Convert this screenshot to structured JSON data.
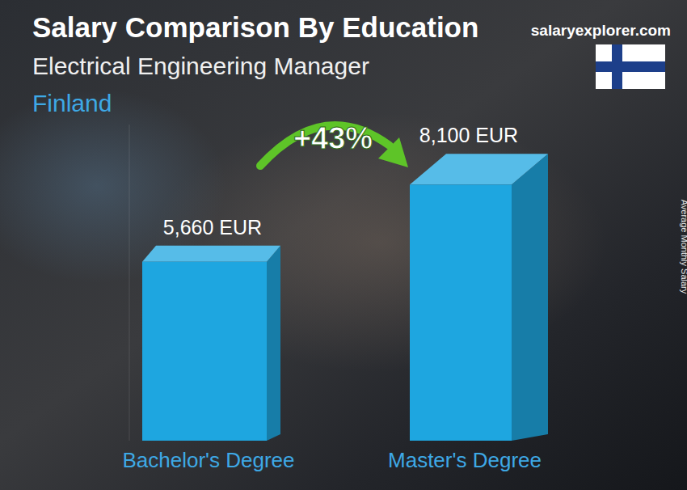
{
  "chart_data": {
    "type": "bar",
    "title": "Salary Comparison By Education",
    "subtitle": "Electrical Engineering Manager",
    "annotations": [
      "Finland",
      "+43%",
      "salaryexplorer.com"
    ],
    "y_label": "Average Monthly Salary",
    "categories": [
      "Bachelor's Degree",
      "Master's Degree"
    ],
    "values": [
      5660,
      8100
    ],
    "value_labels": [
      "5,660 EUR",
      "8,100 EUR"
    ],
    "color": "#1ea6e0",
    "ylim": [
      0,
      10000
    ],
    "tick_labels": false,
    "data_labels": true
  }
}
